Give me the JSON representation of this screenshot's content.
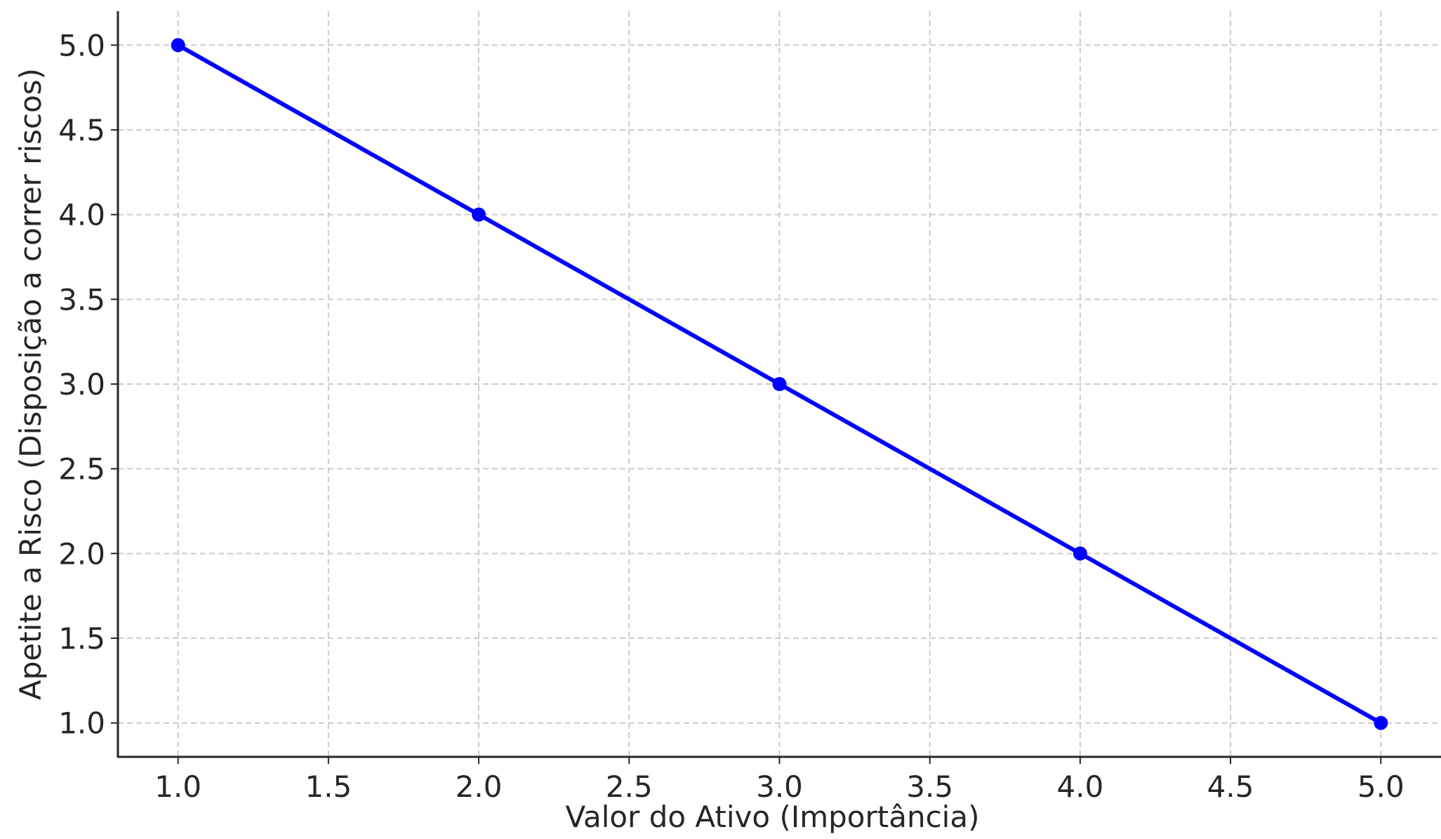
{
  "chart_data": {
    "type": "line",
    "x": [
      1.0,
      2.0,
      3.0,
      4.0,
      5.0
    ],
    "series": [
      {
        "values": [
          5.0,
          4.0,
          3.0,
          2.0,
          1.0
        ],
        "color": "#0000ff",
        "marker": "circle"
      }
    ],
    "xlabel": "Valor do Ativo (Importância)",
    "ylabel": "Apetite a Risco (Disposição a correr riscos)",
    "xlim": [
      0.8,
      5.2
    ],
    "ylim": [
      0.8,
      5.2
    ],
    "xticks": [
      "1.0",
      "1.5",
      "2.0",
      "2.5",
      "3.0",
      "3.5",
      "4.0",
      "4.5",
      "5.0"
    ],
    "yticks": [
      "1.0",
      "1.5",
      "2.0",
      "2.5",
      "3.0",
      "3.5",
      "4.0",
      "4.5",
      "5.0"
    ],
    "grid": true,
    "grid_style": "dashed",
    "grid_color": "#cccccc",
    "axis_color": "#262626"
  }
}
